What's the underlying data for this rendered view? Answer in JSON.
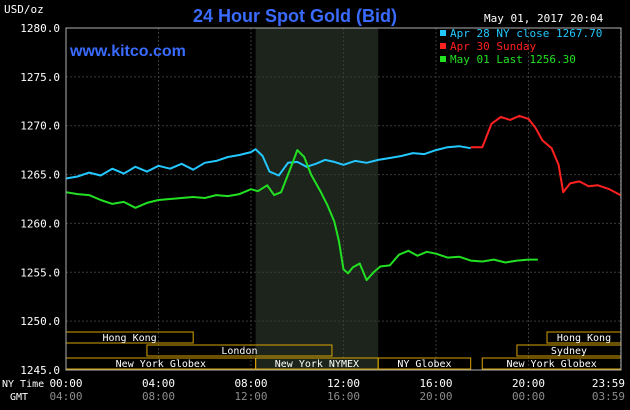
{
  "header": {
    "title": "24 Hour Spot Gold (Bid)",
    "y_unit": "USD/oz",
    "timestamp": "May 01, 2017 20:04",
    "watermark": "www.kitco.com"
  },
  "legend": [
    {
      "label": "Apr 28 NY close 1267.70",
      "color": "#22c8ff"
    },
    {
      "label": "Apr 30 Sunday",
      "color": "#ff2020"
    },
    {
      "label": "May 01 Last 1256.30",
      "color": "#22e022"
    }
  ],
  "axis_labels": {
    "row1_label": "NY Time",
    "row2_label": "GMT"
  },
  "time_ticks": [
    {
      "hour": 0,
      "ny": "00:00",
      "gmt": "04:00"
    },
    {
      "hour": 4,
      "ny": "04:00",
      "gmt": "08:00"
    },
    {
      "hour": 8,
      "ny": "08:00",
      "gmt": "12:00"
    },
    {
      "hour": 12,
      "ny": "12:00",
      "gmt": "16:00"
    },
    {
      "hour": 16,
      "ny": "16:00",
      "gmt": "20:00"
    },
    {
      "hour": 20,
      "ny": "20:00",
      "gmt": "00:00"
    },
    {
      "hour": 23.98,
      "ny": "23:59",
      "gmt": "03:59"
    }
  ],
  "sessions": [
    {
      "label": "Hong Kong",
      "row": 0,
      "start": 0,
      "end": 5.5
    },
    {
      "label": "Hong Kong",
      "row": 0,
      "start": 20.8,
      "end": 24
    },
    {
      "label": "London",
      "row": 1,
      "start": 3.5,
      "end": 11.5
    },
    {
      "label": "Sydney",
      "row": 1,
      "start": 19.5,
      "end": 24
    },
    {
      "label": "New York Globex",
      "row": 2,
      "start": 0,
      "end": 8.2
    },
    {
      "label": "New York NYMEX",
      "row": 2,
      "start": 8.2,
      "end": 13.5
    },
    {
      "label": "NY Globex",
      "row": 2,
      "start": 13.5,
      "end": 17.5
    },
    {
      "label": "New York Globex",
      "row": 2,
      "start": 18,
      "end": 24
    }
  ],
  "chart_data": {
    "type": "line",
    "title": "24 Hour Spot Gold (Bid)",
    "ylabel": "USD/oz",
    "xlabel": "NY Time",
    "xlim": [
      0,
      24
    ],
    "ylim": [
      1245,
      1280
    ],
    "yticks": [
      1245.0,
      1250.0,
      1255.0,
      1260.0,
      1265.0,
      1270.0,
      1275.0,
      1280.0
    ],
    "ytick_labels": [
      "1245.0",
      "1250.0",
      "1255.0",
      "1260.0",
      "1265.0",
      "1270.0",
      "1275.0",
      "1280.0"
    ],
    "grid": true,
    "legend_position": "top-right",
    "highlight_x_range": [
      8.2,
      13.5
    ],
    "series": [
      {
        "name": "Apr 28 NY close 1267.70",
        "color": "#22c8ff",
        "x": [
          0,
          0.5,
          1,
          1.5,
          2,
          2.5,
          3,
          3.5,
          4,
          4.5,
          5,
          5.5,
          6,
          6.5,
          7,
          7.5,
          8,
          8.2,
          8.5,
          8.8,
          9.2,
          9.6,
          10,
          10.4,
          10.8,
          11.2,
          11.6,
          12,
          12.5,
          13,
          13.5,
          14,
          14.5,
          15,
          15.5,
          16,
          16.5,
          17,
          17.5
        ],
        "y": [
          1264.6,
          1264.8,
          1265.2,
          1264.9,
          1265.6,
          1265.1,
          1265.8,
          1265.3,
          1265.9,
          1265.6,
          1266.1,
          1265.5,
          1266.2,
          1266.4,
          1266.8,
          1267.0,
          1267.3,
          1267.6,
          1266.9,
          1265.3,
          1264.9,
          1266.2,
          1266.3,
          1265.8,
          1266.1,
          1266.5,
          1266.3,
          1266.0,
          1266.4,
          1266.2,
          1266.5,
          1266.7,
          1266.9,
          1267.2,
          1267.1,
          1267.5,
          1267.8,
          1267.9,
          1267.7
        ]
      },
      {
        "name": "Apr 30 Sunday",
        "color": "#ff2020",
        "x": [
          17.5,
          18,
          18.4,
          18.8,
          19.2,
          19.6,
          20,
          20.3,
          20.6,
          21,
          21.3,
          21.5,
          21.8,
          22.2,
          22.6,
          23,
          23.5,
          23.98
        ],
        "y": [
          1267.8,
          1267.8,
          1270.2,
          1270.9,
          1270.6,
          1271.0,
          1270.7,
          1269.8,
          1268.5,
          1267.7,
          1266.0,
          1263.2,
          1264.1,
          1264.3,
          1263.8,
          1263.9,
          1263.5,
          1262.9
        ]
      },
      {
        "name": "May 01 Last 1256.30",
        "color": "#22e022",
        "x": [
          0,
          0.5,
          1,
          1.5,
          2,
          2.5,
          3,
          3.5,
          4,
          4.5,
          5,
          5.5,
          6,
          6.5,
          7,
          7.5,
          8,
          8.3,
          8.7,
          9,
          9.3,
          9.6,
          9.8,
          10,
          10.3,
          10.6,
          11,
          11.3,
          11.6,
          11.8,
          12,
          12.2,
          12.4,
          12.7,
          13,
          13.3,
          13.6,
          14,
          14.4,
          14.8,
          15.2,
          15.6,
          16,
          16.5,
          17,
          17.5,
          18,
          18.5,
          19,
          19.5,
          20,
          20.4
        ],
        "y": [
          1263.2,
          1263.0,
          1262.9,
          1262.4,
          1262.0,
          1262.2,
          1261.6,
          1262.1,
          1262.4,
          1262.5,
          1262.6,
          1262.7,
          1262.6,
          1262.9,
          1262.8,
          1263.0,
          1263.5,
          1263.3,
          1263.9,
          1262.9,
          1263.2,
          1265.0,
          1266.2,
          1267.5,
          1266.8,
          1265.0,
          1263.3,
          1261.9,
          1260.2,
          1258.2,
          1255.3,
          1254.9,
          1255.5,
          1255.9,
          1254.2,
          1255.0,
          1255.6,
          1255.7,
          1256.8,
          1257.2,
          1256.7,
          1257.1,
          1256.9,
          1256.5,
          1256.6,
          1256.2,
          1256.1,
          1256.3,
          1256.0,
          1256.2,
          1256.3,
          1256.3
        ]
      }
    ]
  }
}
